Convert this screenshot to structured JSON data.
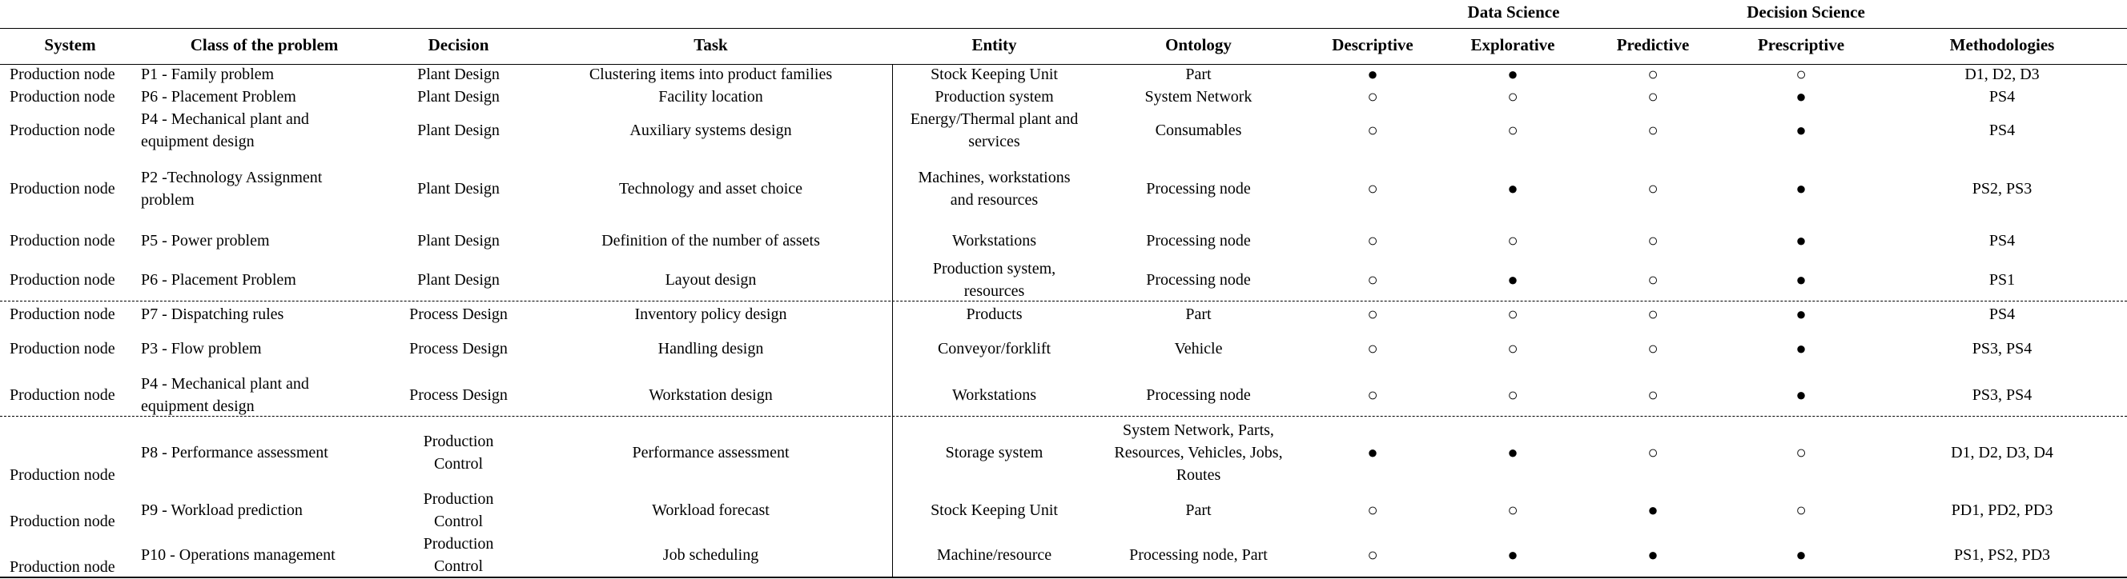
{
  "group_headers": {
    "data_science": "Data Science",
    "decision_science": "Decision Science"
  },
  "columns": {
    "system": "System",
    "class": "Class of the problem",
    "decision": "Decision",
    "task": "Task",
    "entity": "Entity",
    "ontology": "Ontology",
    "descriptive": "Descriptive",
    "explorative": "Explorative",
    "predictive": "Predictive",
    "prescriptive": "Prescriptive",
    "methodologies": "Methodologies"
  },
  "symbols": {
    "filled": "●",
    "empty": "○"
  },
  "rows": [
    {
      "system": "Production node",
      "class": [
        "P1 - Family problem"
      ],
      "decision": [
        "Plant Design"
      ],
      "task": "Clustering items into product families",
      "entity": [
        "Stock Keeping Unit"
      ],
      "ontology": [
        "Part"
      ],
      "descriptive": "●",
      "explorative": "●",
      "predictive": "○",
      "prescriptive": "○",
      "methodologies": "D1, D2, D3"
    },
    {
      "system": "Production node",
      "class": [
        "P6 - Placement Problem"
      ],
      "decision": [
        "Plant Design"
      ],
      "task": "Facility location",
      "entity": [
        "Production system"
      ],
      "ontology": [
        "System Network"
      ],
      "descriptive": "○",
      "explorative": "○",
      "predictive": "○",
      "prescriptive": "●",
      "methodologies": "PS4"
    },
    {
      "system": "Production node",
      "class": [
        "P4 - Mechanical plant and",
        "equipment design"
      ],
      "decision": [
        "Plant Design"
      ],
      "task": "Auxiliary systems design",
      "entity": [
        "Energy/Thermal plant and",
        "services"
      ],
      "ontology": [
        "Consumables"
      ],
      "descriptive": "○",
      "explorative": "○",
      "predictive": "○",
      "prescriptive": "●",
      "methodologies": "PS4"
    },
    {
      "system": "Production node",
      "class": [
        "P2 -Technology Assignment",
        "problem"
      ],
      "decision": [
        "Plant Design"
      ],
      "task": "Technology and asset choice",
      "entity": [
        "Machines, workstations",
        "and resources"
      ],
      "ontology": [
        "Processing node"
      ],
      "descriptive": "○",
      "explorative": "●",
      "predictive": "○",
      "prescriptive": "●",
      "methodologies": "PS2, PS3"
    },
    {
      "system": "Production node",
      "class": [
        "P5 - Power problem"
      ],
      "decision": [
        "Plant Design"
      ],
      "task": "Definition of the number of assets",
      "entity": [
        "Workstations"
      ],
      "ontology": [
        "Processing node"
      ],
      "descriptive": "○",
      "explorative": "○",
      "predictive": "○",
      "prescriptive": "●",
      "methodologies": "PS4"
    },
    {
      "system": "Production node",
      "class": [
        "P6 - Placement Problem"
      ],
      "decision": [
        "Plant Design"
      ],
      "task": "Layout design",
      "entity": [
        "Production system,",
        "resources"
      ],
      "ontology": [
        "Processing node"
      ],
      "descriptive": "○",
      "explorative": "●",
      "predictive": "○",
      "prescriptive": "●",
      "methodologies": "PS1"
    },
    {
      "system": "Production node",
      "class": [
        "P7 - Dispatching rules"
      ],
      "decision": [
        "Process Design"
      ],
      "task": "Inventory policy design",
      "entity": [
        "Products"
      ],
      "ontology": [
        "Part"
      ],
      "descriptive": "○",
      "explorative": "○",
      "predictive": "○",
      "prescriptive": "●",
      "methodologies": "PS4"
    },
    {
      "system": "Production node",
      "class": [
        "P3 - Flow problem"
      ],
      "decision": [
        "Process Design"
      ],
      "task": "Handling design",
      "entity": [
        "Conveyor/forklift"
      ],
      "ontology": [
        "Vehicle"
      ],
      "descriptive": "○",
      "explorative": "○",
      "predictive": "○",
      "prescriptive": "●",
      "methodologies": "PS3, PS4"
    },
    {
      "system": "Production node",
      "class": [
        "P4 - Mechanical plant and",
        "equipment design"
      ],
      "decision": [
        "Process Design"
      ],
      "task": "Workstation design",
      "entity": [
        "Workstations"
      ],
      "ontology": [
        "Processing node"
      ],
      "descriptive": "○",
      "explorative": "○",
      "predictive": "○",
      "prescriptive": "●",
      "methodologies": "PS3, PS4"
    },
    {
      "system": "Production node",
      "class": [
        "P8 - Performance assessment"
      ],
      "decision": [
        "Production",
        "Control"
      ],
      "task": "Performance assessment",
      "entity": [
        "Storage system"
      ],
      "ontology": [
        "System Network, Parts,",
        "Resources, Vehicles, Jobs,",
        "Routes"
      ],
      "descriptive": "●",
      "explorative": "●",
      "predictive": "○",
      "prescriptive": "○",
      "methodologies": "D1, D2, D3, D4"
    },
    {
      "system": "Production node",
      "class": [
        "P9 - Workload prediction"
      ],
      "decision": [
        "Production",
        "Control"
      ],
      "task": "Workload forecast",
      "entity": [
        "Stock Keeping Unit"
      ],
      "ontology": [
        "Part"
      ],
      "descriptive": "○",
      "explorative": "○",
      "predictive": "●",
      "prescriptive": "○",
      "methodologies": "PD1, PD2, PD3"
    },
    {
      "system": "Production node",
      "class": [
        "P10 - Operations management"
      ],
      "decision": [
        "Production",
        "Control"
      ],
      "task": "Job scheduling",
      "entity": [
        "Machine/resource"
      ],
      "ontology": [
        "Processing node, Part"
      ],
      "descriptive": "○",
      "explorative": "●",
      "predictive": "●",
      "prescriptive": "●",
      "methodologies": "PS1, PS2, PD3"
    }
  ]
}
